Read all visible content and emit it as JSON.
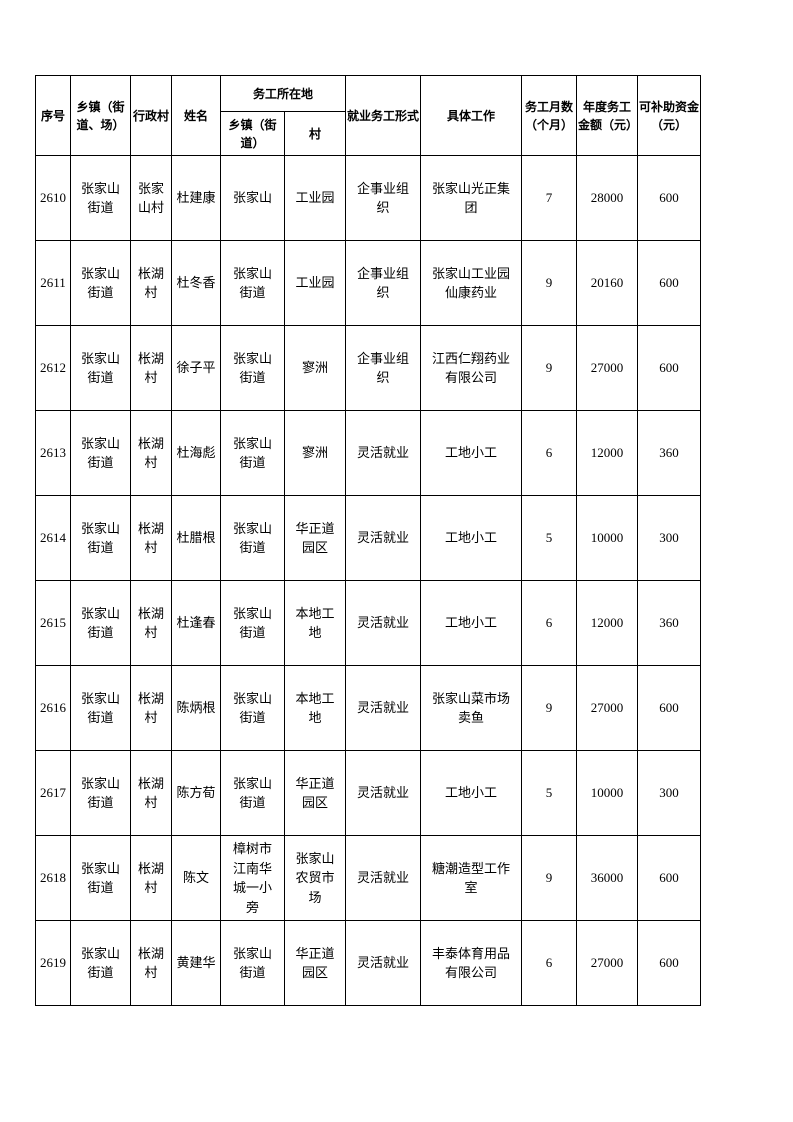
{
  "page": {
    "background_color": "#ffffff",
    "text_color": "#000000",
    "table_border_color": "#000000"
  },
  "table": {
    "header": {
      "serial": "序号",
      "township": "乡镇（街道、场）",
      "village": "行政村",
      "name": "姓名",
      "work_location_group": "务工所在地",
      "work_township": "乡镇（街道）",
      "work_village": "村",
      "employment_form": "就业务工形式",
      "job": "具体工作",
      "months": "务工月数（个月）",
      "annual_amount": "年度务工金额（元）",
      "subsidy": "可补助资金（元）"
    },
    "rows": [
      [
        2610,
        "张家山街道",
        "张家山村",
        "杜建康",
        "张家山",
        "工业园",
        "企事业组织",
        "张家山光正集团",
        7,
        28000,
        600
      ],
      [
        2611,
        "张家山街道",
        "枨湖村",
        "杜冬香",
        "张家山街道",
        "工业园",
        "企事业组织",
        "张家山工业园仙康药业",
        9,
        20160,
        600
      ],
      [
        2612,
        "张家山街道",
        "枨湖村",
        "徐子平",
        "张家山街道",
        "寥洲",
        "企事业组织",
        "江西仁翔药业有限公司",
        9,
        27000,
        600
      ],
      [
        2613,
        "张家山街道",
        "枨湖村",
        "杜海彪",
        "张家山街道",
        "寥洲",
        "灵活就业",
        "工地小工",
        6,
        12000,
        360
      ],
      [
        2614,
        "张家山街道",
        "枨湖村",
        "杜腊根",
        "张家山街道",
        "华正道园区",
        "灵活就业",
        "工地小工",
        5,
        10000,
        300
      ],
      [
        2615,
        "张家山街道",
        "枨湖村",
        "杜逢春",
        "张家山街道",
        "本地工地",
        "灵活就业",
        "工地小工",
        6,
        12000,
        360
      ],
      [
        2616,
        "张家山街道",
        "枨湖村",
        "陈炳根",
        "张家山街道",
        "本地工地",
        "灵活就业",
        "张家山菜市场卖鱼",
        9,
        27000,
        600
      ],
      [
        2617,
        "张家山街道",
        "枨湖村",
        "陈方荀",
        "张家山街道",
        "华正道园区",
        "灵活就业",
        "工地小工",
        5,
        10000,
        300
      ],
      [
        2618,
        "张家山街道",
        "枨湖村",
        "陈文",
        "樟树市江南华城一小旁",
        "张家山农贸市场",
        "灵活就业",
        "糖潮造型工作室",
        9,
        36000,
        600
      ],
      [
        2619,
        "张家山街道",
        "枨湖村",
        "黄建华",
        "张家山街道",
        "华正道园区",
        "灵活就业",
        "丰泰体育用品有限公司",
        6,
        27000,
        600
      ]
    ]
  }
}
